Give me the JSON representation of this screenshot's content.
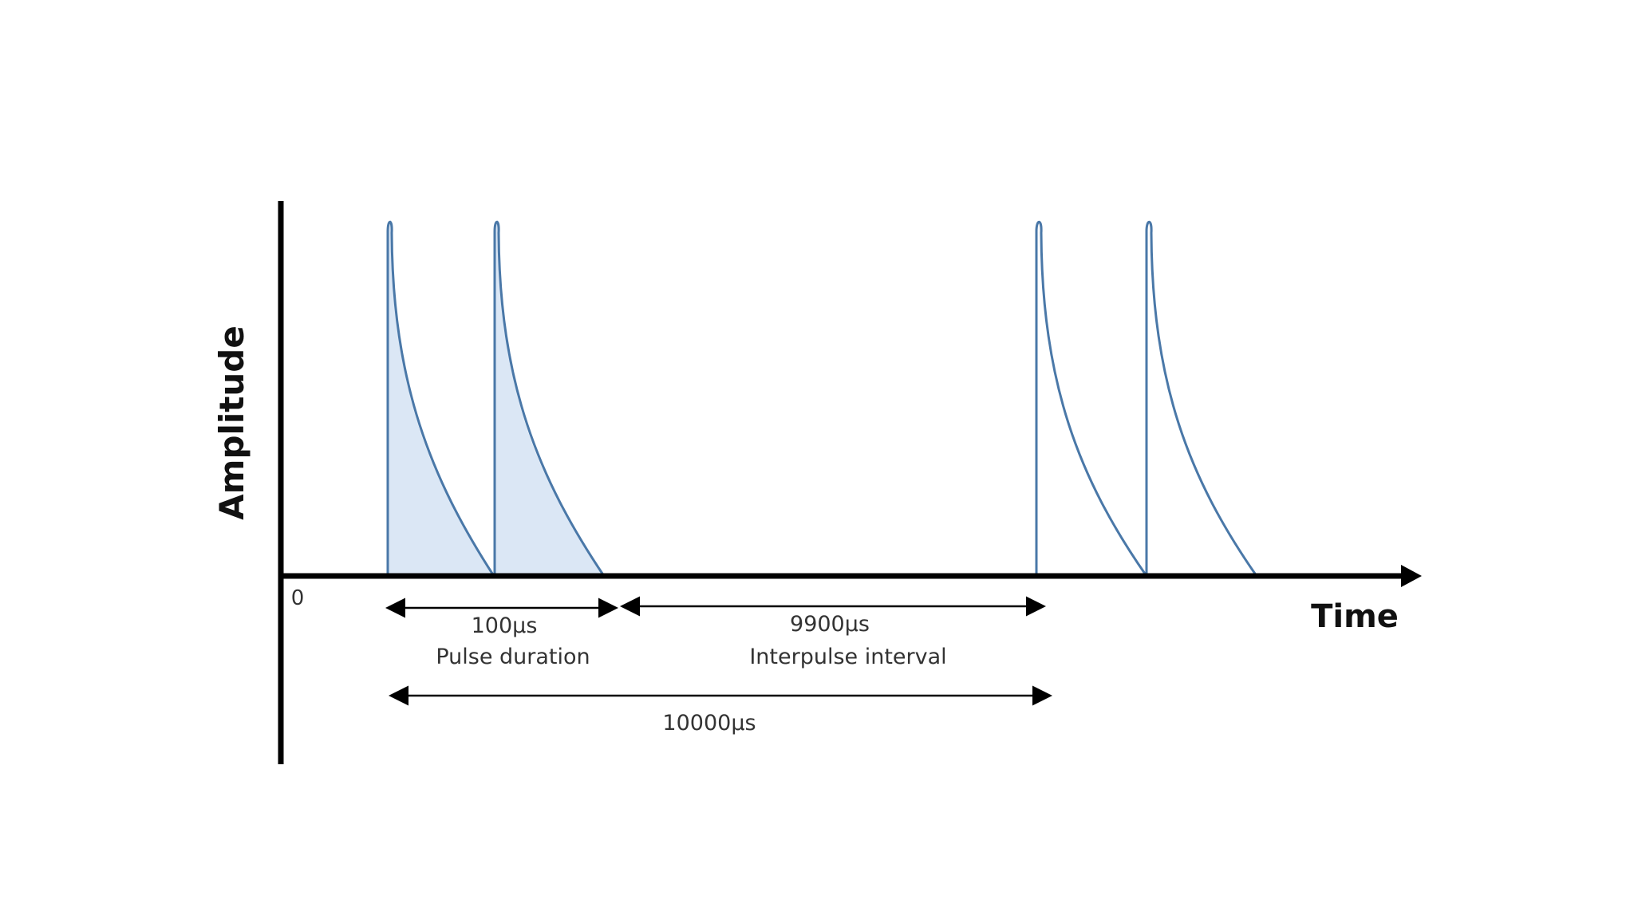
{
  "axes": {
    "y_label": "Amplitude",
    "x_label": "Time",
    "origin_label": "0"
  },
  "annotations": {
    "pulse_duration_value": "100μs",
    "pulse_duration_label": "Pulse duration",
    "interpulse_value": "9900μs",
    "interpulse_label": "Interpulse interval",
    "period_value": "10000μs"
  },
  "colors": {
    "axis": "#000000",
    "pulse_line": "#4a78a8",
    "pulse_fill": "#dbe7f5",
    "arrow": "#000000",
    "text": "#333333"
  }
}
